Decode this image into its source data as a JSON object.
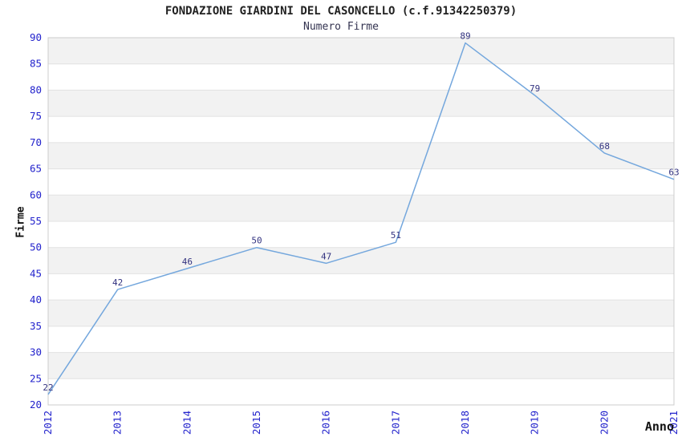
{
  "chart_data": {
    "type": "line",
    "title": "FONDAZIONE GIARDINI DEL CASONCELLO (c.f.91342250379)",
    "subtitle": "Numero Firme",
    "xlabel": "Anno",
    "ylabel": "Firme",
    "categories": [
      "2012",
      "2013",
      "2014",
      "2015",
      "2016",
      "2017",
      "2018",
      "2019",
      "2020",
      "2021"
    ],
    "values": [
      22,
      42,
      46,
      50,
      47,
      51,
      89,
      79,
      68,
      63
    ],
    "ylim": [
      20,
      90
    ],
    "yticks": [
      20,
      25,
      30,
      35,
      40,
      45,
      50,
      55,
      60,
      65,
      70,
      75,
      80,
      85,
      90
    ],
    "grid": "horizontal gridlines with alternating shaded bands",
    "legend": "none",
    "colors": {
      "line": "#74a7dd",
      "tick_label": "#2222cc",
      "data_label": "#333380",
      "band": "#f2f2f2",
      "gridline": "#e2e2e2",
      "plot_border": "#cccccc",
      "title": "#222222",
      "subtitle": "#333350",
      "axis_title": "#111111",
      "background": "#ffffff"
    }
  }
}
